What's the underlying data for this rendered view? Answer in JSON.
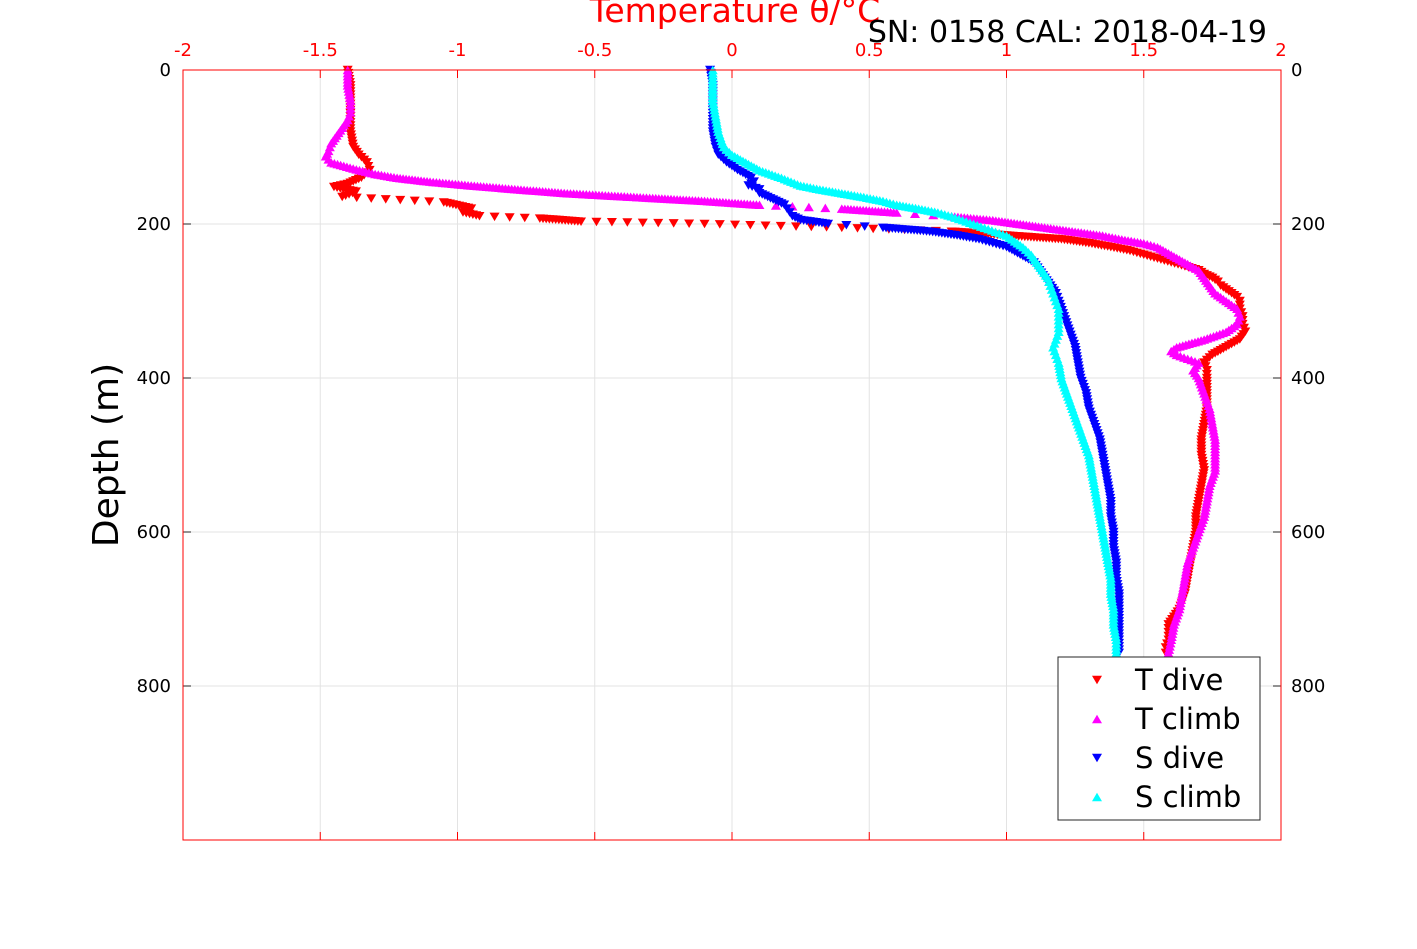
{
  "chart_data": {
    "type": "scatter",
    "title": "Temperature θ/°C",
    "subtitle": "SN: 0158  CAL: 2018-04-19",
    "ylabel": "Depth (m)",
    "xlabel_top": "Temperature θ/°C",
    "x_top_range": [
      -2,
      2
    ],
    "x_top_ticks": [
      "-2",
      "-1.5",
      "-1",
      "-0.5",
      "0",
      "0.5",
      "1",
      "1.5",
      "2"
    ],
    "y_range": [
      0,
      1000
    ],
    "y_reversed": true,
    "y_ticks": [
      "0",
      "200",
      "400",
      "600",
      "800"
    ],
    "grid": true,
    "legend_position": "bottom-right",
    "colors": {
      "t_dive": "#ff0000",
      "t_climb": "#ff00ff",
      "s_dive": "#0000ff",
      "s_climb": "#00ffff",
      "top_axis": "#ff0000",
      "box": "#ff0000",
      "grid": "#e3e3e3"
    },
    "series": [
      {
        "name": "T dive",
        "marker": "triangle-down",
        "color": "#ff0000",
        "depth": [
          0,
          20,
          40,
          60,
          80,
          100,
          110,
          120,
          130,
          140,
          148,
          152,
          158,
          165,
          172,
          180,
          185,
          190,
          193,
          197,
          200,
          205,
          210,
          215,
          220,
          225,
          230,
          235,
          240,
          245,
          250,
          255,
          260,
          265,
          270,
          275,
          280,
          285,
          290,
          295,
          300,
          310,
          320,
          330,
          340,
          350,
          360,
          370,
          380,
          390,
          400,
          420,
          440,
          460,
          480,
          500,
          520,
          540,
          560,
          580,
          600,
          620,
          640,
          660,
          680,
          700,
          710,
          720,
          730,
          740,
          750,
          757
        ],
        "temperature": [
          -1.4,
          -1.39,
          -1.39,
          -1.39,
          -1.39,
          -1.38,
          -1.36,
          -1.33,
          -1.32,
          -1.35,
          -1.4,
          -1.45,
          -1.37,
          -1.42,
          -1.05,
          -0.95,
          -0.98,
          -0.92,
          -0.7,
          -0.55,
          -0.1,
          0.4,
          0.8,
          1.0,
          1.2,
          1.3,
          1.38,
          1.45,
          1.5,
          1.55,
          1.6,
          1.65,
          1.7,
          1.72,
          1.75,
          1.77,
          1.78,
          1.8,
          1.82,
          1.84,
          1.85,
          1.85,
          1.86,
          1.86,
          1.87,
          1.85,
          1.8,
          1.75,
          1.72,
          1.73,
          1.73,
          1.73,
          1.73,
          1.72,
          1.71,
          1.71,
          1.72,
          1.71,
          1.7,
          1.69,
          1.69,
          1.68,
          1.67,
          1.66,
          1.65,
          1.63,
          1.61,
          1.59,
          1.59,
          1.59,
          1.58,
          1.58
        ]
      },
      {
        "name": "T climb",
        "marker": "triangle-up",
        "color": "#ff00ff",
        "depth": [
          0,
          20,
          40,
          55,
          65,
          75,
          85,
          95,
          105,
          112,
          120,
          128,
          135,
          140,
          145,
          150,
          155,
          160,
          163,
          166,
          170,
          175,
          180,
          185,
          190,
          195,
          200,
          205,
          210,
          215,
          220,
          225,
          230,
          240,
          250,
          260,
          270,
          280,
          290,
          300,
          310,
          320,
          330,
          340,
          350,
          360,
          365,
          370,
          375,
          380,
          390,
          400,
          420,
          440,
          460,
          480,
          500,
          520,
          540,
          560,
          580,
          600,
          620,
          640,
          660,
          680,
          700,
          720,
          740,
          757
        ],
        "temperature": [
          -1.4,
          -1.4,
          -1.39,
          -1.39,
          -1.4,
          -1.42,
          -1.44,
          -1.46,
          -1.47,
          -1.48,
          -1.46,
          -1.38,
          -1.3,
          -1.22,
          -1.1,
          -0.95,
          -0.78,
          -0.6,
          -0.45,
          -0.3,
          -0.1,
          0.1,
          0.4,
          0.6,
          0.8,
          0.95,
          1.05,
          1.15,
          1.25,
          1.35,
          1.42,
          1.5,
          1.55,
          1.6,
          1.65,
          1.7,
          1.72,
          1.74,
          1.76,
          1.8,
          1.84,
          1.85,
          1.84,
          1.8,
          1.72,
          1.62,
          1.6,
          1.62,
          1.66,
          1.7,
          1.68,
          1.7,
          1.72,
          1.74,
          1.75,
          1.76,
          1.76,
          1.76,
          1.74,
          1.73,
          1.72,
          1.7,
          1.68,
          1.66,
          1.65,
          1.64,
          1.63,
          1.61,
          1.6,
          1.59
        ]
      },
      {
        "name": "S dive",
        "marker": "triangle-down",
        "color": "#0000ff",
        "depth": [
          0,
          20,
          40,
          60,
          80,
          100,
          110,
          120,
          130,
          140,
          145,
          150,
          155,
          160,
          165,
          170,
          175,
          180,
          185,
          190,
          195,
          200,
          205,
          210,
          215,
          220,
          225,
          230,
          240,
          250,
          260,
          270,
          280,
          290,
          300,
          320,
          340,
          360,
          380,
          400,
          420,
          440,
          460,
          480,
          500,
          520,
          540,
          560,
          580,
          600,
          620,
          640,
          660,
          680,
          700,
          720,
          740,
          757
        ],
        "temperature": [
          -0.08,
          -0.07,
          -0.07,
          -0.07,
          -0.07,
          -0.06,
          -0.05,
          -0.02,
          0.02,
          0.07,
          0.08,
          0.06,
          0.1,
          0.1,
          0.13,
          0.16,
          0.19,
          0.2,
          0.21,
          0.22,
          0.25,
          0.35,
          0.55,
          0.72,
          0.82,
          0.9,
          0.95,
          1.0,
          1.05,
          1.1,
          1.12,
          1.14,
          1.16,
          1.18,
          1.19,
          1.21,
          1.23,
          1.25,
          1.26,
          1.27,
          1.29,
          1.3,
          1.32,
          1.34,
          1.35,
          1.36,
          1.37,
          1.38,
          1.38,
          1.39,
          1.39,
          1.4,
          1.4,
          1.41,
          1.41,
          1.41,
          1.41,
          1.41
        ]
      },
      {
        "name": "S climb",
        "marker": "triangle-up",
        "color": "#00ffff",
        "depth": [
          0,
          20,
          40,
          60,
          80,
          100,
          110,
          120,
          130,
          140,
          150,
          155,
          160,
          165,
          170,
          175,
          180,
          185,
          190,
          195,
          200,
          205,
          210,
          215,
          220,
          225,
          230,
          240,
          250,
          260,
          270,
          280,
          290,
          300,
          310,
          320,
          330,
          340,
          350,
          360,
          370,
          380,
          400,
          420,
          440,
          460,
          480,
          500,
          520,
          540,
          560,
          580,
          600,
          620,
          640,
          660,
          680,
          700,
          720,
          740,
          757
        ],
        "temperature": [
          -0.07,
          -0.07,
          -0.07,
          -0.06,
          -0.05,
          -0.03,
          0.0,
          0.05,
          0.1,
          0.18,
          0.25,
          0.32,
          0.4,
          0.48,
          0.55,
          0.6,
          0.68,
          0.75,
          0.8,
          0.84,
          0.88,
          0.92,
          0.96,
          1.0,
          1.02,
          1.04,
          1.06,
          1.09,
          1.11,
          1.13,
          1.15,
          1.16,
          1.17,
          1.18,
          1.19,
          1.19,
          1.19,
          1.19,
          1.18,
          1.17,
          1.18,
          1.19,
          1.2,
          1.22,
          1.24,
          1.26,
          1.28,
          1.3,
          1.31,
          1.32,
          1.33,
          1.34,
          1.35,
          1.36,
          1.37,
          1.38,
          1.38,
          1.39,
          1.39,
          1.4,
          1.4
        ]
      }
    ]
  }
}
